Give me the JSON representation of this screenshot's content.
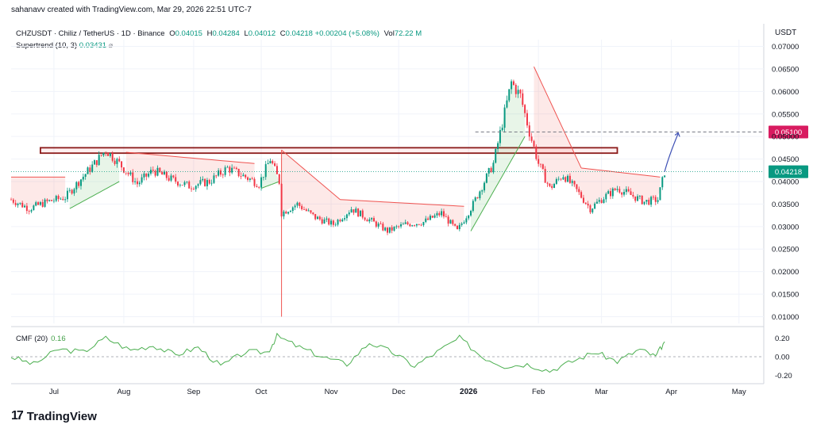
{
  "header": {
    "credit": "sahanavv created with TradingView.com, Mar 29, 2026 22:51 UTC-7"
  },
  "legend": {
    "symbol": "CHZUSDT · Chiliz / TetherUS · 1D · Binance",
    "o_label": "O",
    "o_val": "0.04015",
    "h_label": "H",
    "h_val": "0.04284",
    "l_label": "L",
    "l_val": "0.04012",
    "c_label": "C",
    "c_val": "0.04218",
    "change": "+0.00204 (+5.08%)",
    "vol_label": "Vol",
    "vol_val": "72.22 M",
    "supertrend_label": "Supertrend (10, 3)",
    "supertrend_val": "0.03431"
  },
  "cmf": {
    "label": "CMF (20)",
    "value": "0.16"
  },
  "footer": {
    "logo_text": "TradingView"
  },
  "colors": {
    "up": "#089981",
    "down": "#f23645",
    "supertrend_up": "#4caf50",
    "supertrend_down": "#ef5350",
    "zone_border": "#8b1a1a",
    "target": "#d81b60",
    "arrow": "#3f51b5",
    "cmf": "#4caf50"
  },
  "chart_data": [
    {
      "type": "candlestick",
      "title": "CHZUSDT · Chiliz / TetherUS · 1D · Binance",
      "axis_title": "USDT",
      "yticks": [
        "0.07000",
        "0.06500",
        "0.06000",
        "0.05500",
        "0.05000",
        "0.04500",
        "0.04000",
        "0.03500",
        "0.03000",
        "0.02500",
        "0.02000",
        "0.01500",
        "0.01000"
      ],
      "ytick_values": [
        0.07,
        0.065,
        0.06,
        0.055,
        0.05,
        0.045,
        0.04,
        0.035,
        0.03,
        0.025,
        0.02,
        0.015,
        0.01
      ],
      "ylim": [
        0.0085,
        0.0715
      ],
      "xticks": [
        "Jul",
        "Aug",
        "Sep",
        "Oct",
        "Nov",
        "Dec",
        "2026",
        "Feb",
        "Mar",
        "Apr",
        "May"
      ],
      "xtick_dates": [
        "2025-07-01",
        "2025-08-01",
        "2025-09-01",
        "2025-10-01",
        "2025-11-01",
        "2025-12-01",
        "2026-01-01",
        "2026-02-01",
        "2026-03-01",
        "2026-04-01",
        "2026-05-01"
      ],
      "x_range": [
        "2025-06-12",
        "2026-05-12"
      ],
      "close_by_week": [
        {
          "date": "2025-06-12",
          "close": 0.036
        },
        {
          "date": "2025-06-20",
          "close": 0.034
        },
        {
          "date": "2025-06-28",
          "close": 0.0355
        },
        {
          "date": "2025-07-06",
          "close": 0.0365
        },
        {
          "date": "2025-07-12",
          "close": 0.04
        },
        {
          "date": "2025-07-19",
          "close": 0.044
        },
        {
          "date": "2025-07-24",
          "close": 0.047
        },
        {
          "date": "2025-07-30",
          "close": 0.044
        },
        {
          "date": "2025-08-07",
          "close": 0.0395
        },
        {
          "date": "2025-08-14",
          "close": 0.0425
        },
        {
          "date": "2025-08-22",
          "close": 0.0405
        },
        {
          "date": "2025-08-30",
          "close": 0.039
        },
        {
          "date": "2025-09-08",
          "close": 0.04
        },
        {
          "date": "2025-09-16",
          "close": 0.043
        },
        {
          "date": "2025-09-24",
          "close": 0.041
        },
        {
          "date": "2025-09-30",
          "close": 0.0395
        },
        {
          "date": "2025-10-05",
          "close": 0.045
        },
        {
          "date": "2025-10-09",
          "close": 0.04
        },
        {
          "date": "2025-10-10",
          "close": 0.033
        },
        {
          "date": "2025-10-17",
          "close": 0.035
        },
        {
          "date": "2025-10-25",
          "close": 0.032
        },
        {
          "date": "2025-11-02",
          "close": 0.0305
        },
        {
          "date": "2025-11-10",
          "close": 0.034
        },
        {
          "date": "2025-11-18",
          "close": 0.0315
        },
        {
          "date": "2025-11-26",
          "close": 0.029
        },
        {
          "date": "2025-12-04",
          "close": 0.0305
        },
        {
          "date": "2025-12-12",
          "close": 0.031
        },
        {
          "date": "2025-12-20",
          "close": 0.033
        },
        {
          "date": "2025-12-27",
          "close": 0.029
        },
        {
          "date": "2026-01-03",
          "close": 0.035
        },
        {
          "date": "2026-01-08",
          "close": 0.04
        },
        {
          "date": "2026-01-12",
          "close": 0.044
        },
        {
          "date": "2026-01-16",
          "close": 0.053
        },
        {
          "date": "2026-01-20",
          "close": 0.062
        },
        {
          "date": "2026-01-24",
          "close": 0.059
        },
        {
          "date": "2026-01-28",
          "close": 0.051
        },
        {
          "date": "2026-02-01",
          "close": 0.044
        },
        {
          "date": "2026-02-06",
          "close": 0.0385
        },
        {
          "date": "2026-02-12",
          "close": 0.0415
        },
        {
          "date": "2026-02-18",
          "close": 0.038
        },
        {
          "date": "2026-02-24",
          "close": 0.034
        },
        {
          "date": "2026-03-02",
          "close": 0.0365
        },
        {
          "date": "2026-03-08",
          "close": 0.0385
        },
        {
          "date": "2026-03-14",
          "close": 0.037
        },
        {
          "date": "2026-03-20",
          "close": 0.0355
        },
        {
          "date": "2026-03-26",
          "close": 0.036
        },
        {
          "date": "2026-03-29",
          "close": 0.04218
        }
      ],
      "supertrend": [
        {
          "date": "2025-06-12",
          "value": 0.041,
          "dir": "down"
        },
        {
          "date": "2025-07-06",
          "value": 0.041,
          "dir": "down"
        },
        {
          "date": "2025-07-08",
          "value": 0.034,
          "dir": "up"
        },
        {
          "date": "2025-07-30",
          "value": 0.04,
          "dir": "up"
        },
        {
          "date": "2025-08-02",
          "value": 0.0465,
          "dir": "down"
        },
        {
          "date": "2025-09-28",
          "value": 0.044,
          "dir": "down"
        },
        {
          "date": "2025-10-01",
          "value": 0.0385,
          "dir": "up"
        },
        {
          "date": "2025-10-09",
          "value": 0.04,
          "dir": "up"
        },
        {
          "date": "2025-10-10",
          "value": 0.047,
          "dir": "down"
        },
        {
          "date": "2025-11-05",
          "value": 0.036,
          "dir": "down"
        },
        {
          "date": "2025-12-30",
          "value": 0.0345,
          "dir": "down"
        },
        {
          "date": "2026-01-02",
          "value": 0.029,
          "dir": "up"
        },
        {
          "date": "2026-01-26",
          "value": 0.05,
          "dir": "up"
        },
        {
          "date": "2026-01-30",
          "value": 0.0655,
          "dir": "down"
        },
        {
          "date": "2026-02-20",
          "value": 0.043,
          "dir": "down"
        },
        {
          "date": "2026-03-27",
          "value": 0.041,
          "dir": "down"
        }
      ],
      "resistance_zone": {
        "from": "2025-06-25",
        "to": "2026-03-08",
        "low": 0.0463,
        "high": 0.0475
      },
      "target": {
        "value": 0.051,
        "label": "0.05100"
      },
      "current_price": {
        "value": 0.04218,
        "label": "0.04218"
      }
    },
    {
      "type": "line",
      "title": "CMF (20)",
      "yticks": [
        "0.20",
        "0.00",
        "-0.20"
      ],
      "ytick_values": [
        0.2,
        0,
        -0.2
      ],
      "ylim": [
        -0.27,
        0.27
      ],
      "values": [
        {
          "date": "2025-06-12",
          "value": 0.0
        },
        {
          "date": "2025-06-22",
          "value": -0.08
        },
        {
          "date": "2025-07-03",
          "value": 0.08
        },
        {
          "date": "2025-07-14",
          "value": 0.05
        },
        {
          "date": "2025-07-24",
          "value": 0.2
        },
        {
          "date": "2025-08-04",
          "value": 0.07
        },
        {
          "date": "2025-08-14",
          "value": 0.12
        },
        {
          "date": "2025-08-24",
          "value": 0.02
        },
        {
          "date": "2025-09-03",
          "value": 0.1
        },
        {
          "date": "2025-09-13",
          "value": -0.1
        },
        {
          "date": "2025-09-24",
          "value": 0.05
        },
        {
          "date": "2025-10-04",
          "value": 0.05
        },
        {
          "date": "2025-10-08",
          "value": 0.22
        },
        {
          "date": "2025-10-18",
          "value": 0.1
        },
        {
          "date": "2025-10-28",
          "value": 0.0
        },
        {
          "date": "2025-11-08",
          "value": -0.08
        },
        {
          "date": "2025-11-18",
          "value": 0.15
        },
        {
          "date": "2025-11-28",
          "value": 0.05
        },
        {
          "date": "2025-12-08",
          "value": -0.1
        },
        {
          "date": "2025-12-18",
          "value": 0.05
        },
        {
          "date": "2025-12-28",
          "value": 0.2
        },
        {
          "date": "2026-01-07",
          "value": 0.0
        },
        {
          "date": "2026-01-17",
          "value": -0.1
        },
        {
          "date": "2026-01-27",
          "value": -0.08
        },
        {
          "date": "2026-02-06",
          "value": -0.15
        },
        {
          "date": "2026-02-16",
          "value": -0.05
        },
        {
          "date": "2026-02-26",
          "value": 0.05
        },
        {
          "date": "2026-03-08",
          "value": -0.05
        },
        {
          "date": "2026-03-18",
          "value": 0.08
        },
        {
          "date": "2026-03-25",
          "value": 0.0
        },
        {
          "date": "2026-03-29",
          "value": 0.16
        }
      ]
    }
  ]
}
